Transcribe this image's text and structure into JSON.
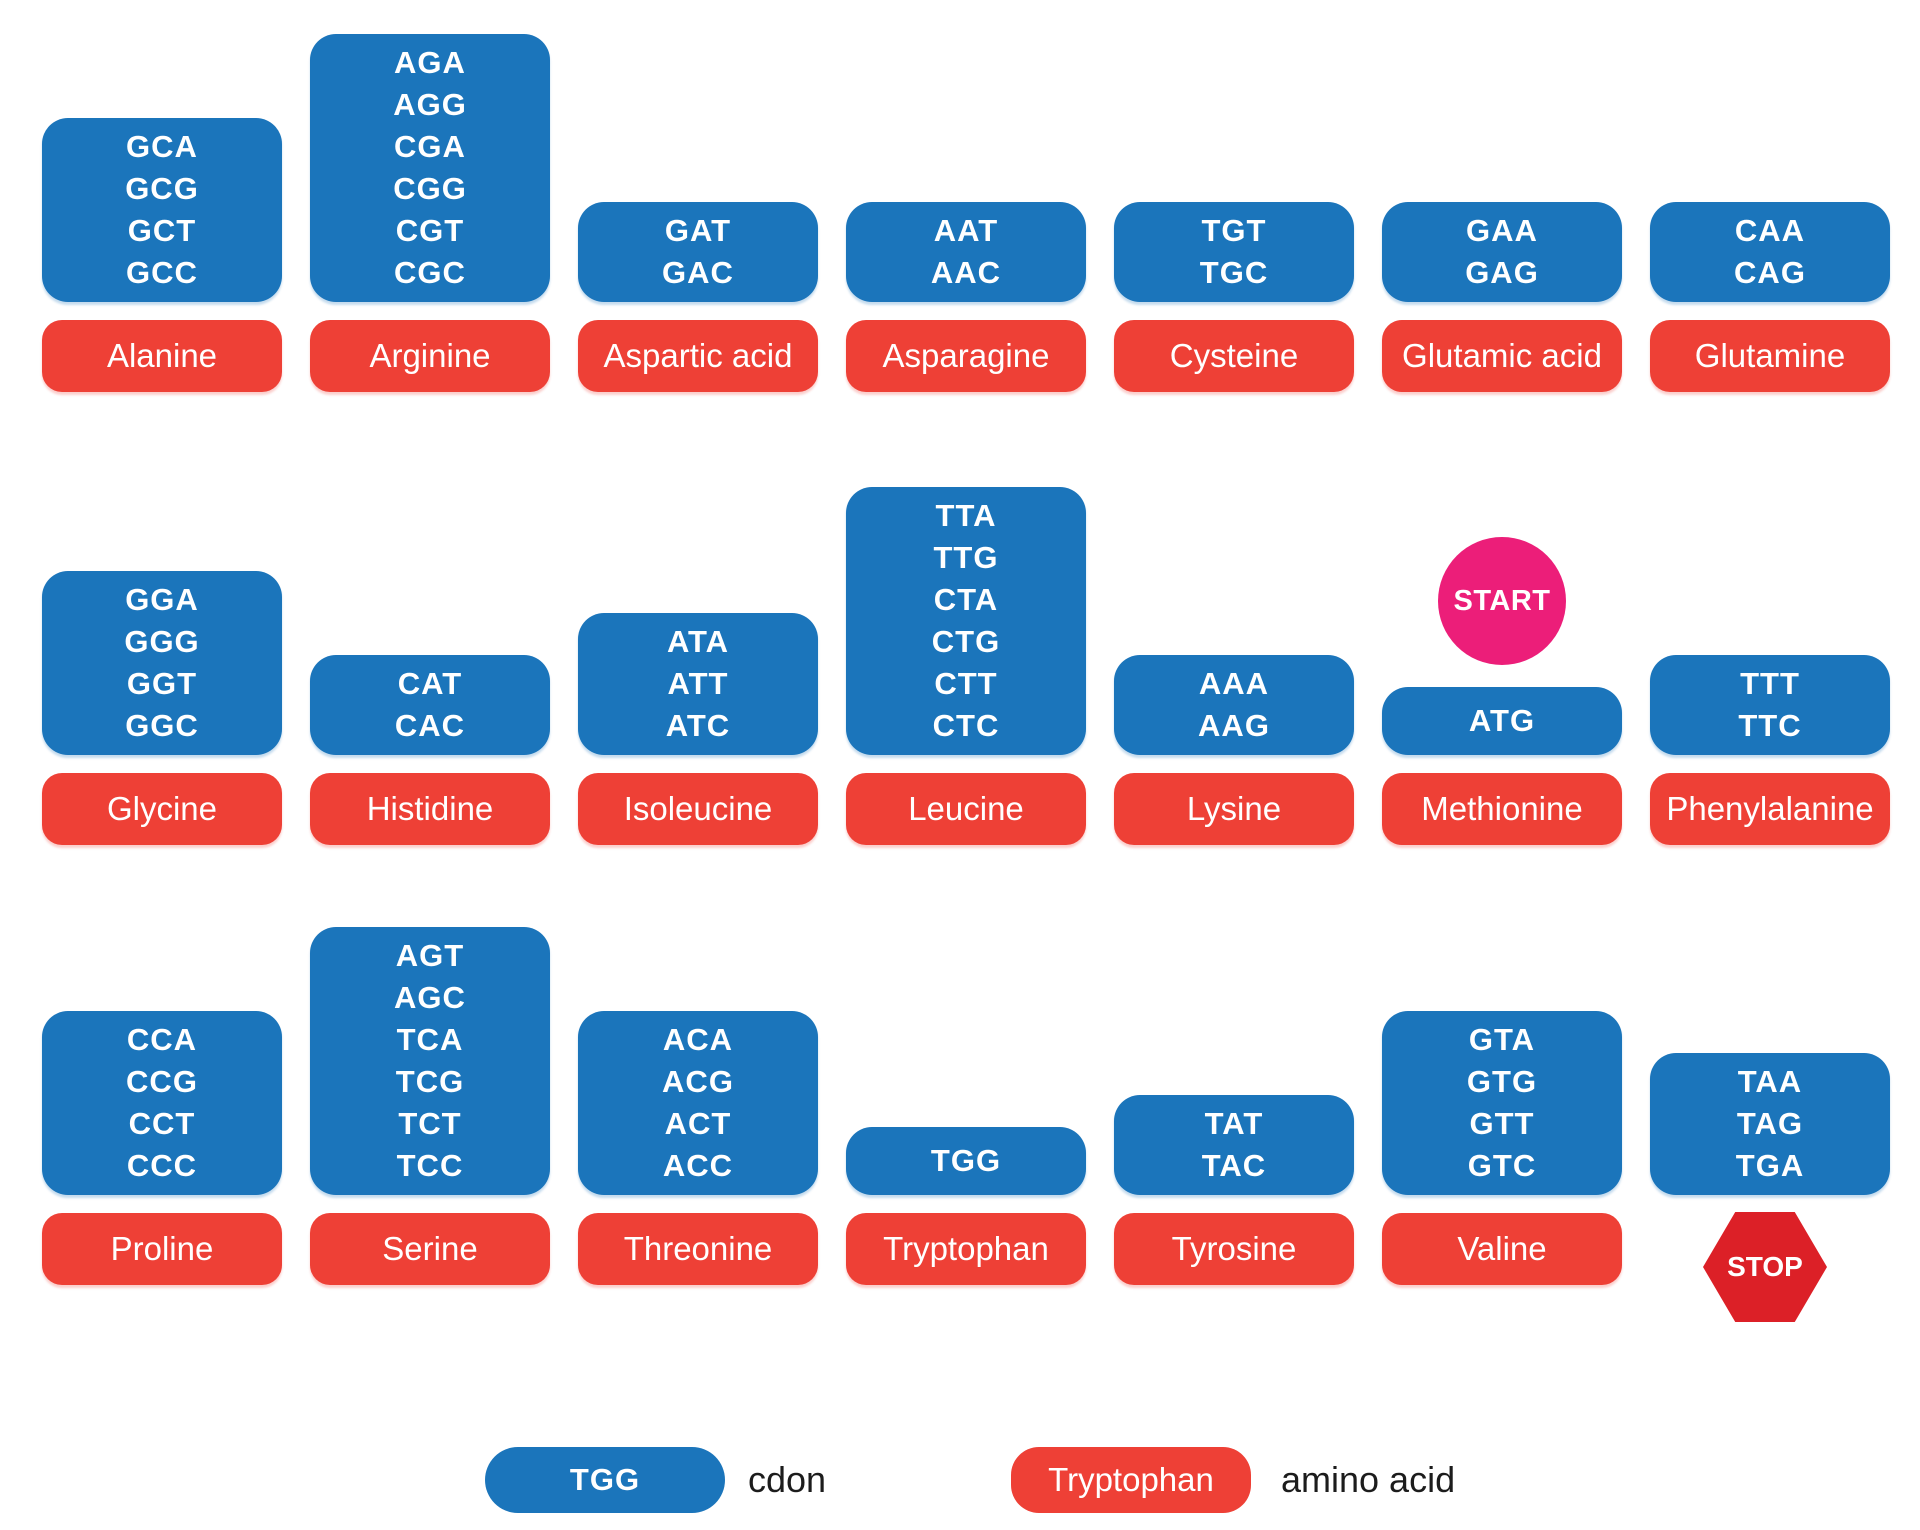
{
  "colors": {
    "codon_blue": "#1b75bb",
    "amino_red": "#ee4036",
    "start_pink": "#ec1e79",
    "stop_red": "#dc2027",
    "box_text": "#ffffff",
    "legend_text": "#1c1c1c"
  },
  "markers": {
    "start": "START",
    "stop": "STOP"
  },
  "rows": [
    {
      "groups": [
        {
          "name": "Alanine",
          "codons": [
            "GCA",
            "GCG",
            "GCT",
            "GCC"
          ]
        },
        {
          "name": "Arginine",
          "codons": [
            "AGA",
            "AGG",
            "CGA",
            "CGG",
            "CGT",
            "CGC"
          ]
        },
        {
          "name": "Aspartic acid",
          "codons": [
            "GAT",
            "GAC"
          ]
        },
        {
          "name": "Asparagine",
          "codons": [
            "AAT",
            "AAC"
          ]
        },
        {
          "name": "Cysteine",
          "codons": [
            "TGT",
            "TGC"
          ]
        },
        {
          "name": "Glutamic acid",
          "codons": [
            "GAA",
            "GAG"
          ]
        },
        {
          "name": "Glutamine",
          "codons": [
            "CAA",
            "CAG"
          ]
        }
      ]
    },
    {
      "groups": [
        {
          "name": "Glycine",
          "codons": [
            "GGA",
            "GGG",
            "GGT",
            "GGC"
          ]
        },
        {
          "name": "Histidine",
          "codons": [
            "CAT",
            "CAC"
          ]
        },
        {
          "name": "Isoleucine",
          "codons": [
            "ATA",
            "ATT",
            "ATC"
          ]
        },
        {
          "name": "Leucine",
          "codons": [
            "TTA",
            "TTG",
            "CTA",
            "CTG",
            "CTT",
            "CTC"
          ]
        },
        {
          "name": "Lysine",
          "codons": [
            "AAA",
            "AAG"
          ]
        },
        {
          "name": "Methionine",
          "codons": [
            "ATG"
          ],
          "marker": "START"
        },
        {
          "name": "Phenylalanine",
          "codons": [
            "TTT",
            "TTC"
          ]
        }
      ]
    },
    {
      "groups": [
        {
          "name": "Proline",
          "codons": [
            "CCA",
            "CCG",
            "CCT",
            "CCC"
          ]
        },
        {
          "name": "Serine",
          "codons": [
            "AGT",
            "AGC",
            "TCA",
            "TCG",
            "TCT",
            "TCC"
          ]
        },
        {
          "name": "Threonine",
          "codons": [
            "ACA",
            "ACG",
            "ACT",
            "ACC"
          ]
        },
        {
          "name": "Tryptophan",
          "codons": [
            "TGG"
          ]
        },
        {
          "name": "Tyrosine",
          "codons": [
            "TAT",
            "TAC"
          ]
        },
        {
          "name": "Valine",
          "codons": [
            "GTA",
            "GTG",
            "GTT",
            "GTC"
          ]
        },
        {
          "name": "",
          "codons": [
            "TAA",
            "TAG",
            "TGA"
          ],
          "marker": "STOP"
        }
      ]
    }
  ],
  "legend": {
    "codon_sample": "TGG",
    "codon_label": "cdon",
    "amino_sample": "Tryptophan",
    "amino_label": "amino acid"
  }
}
